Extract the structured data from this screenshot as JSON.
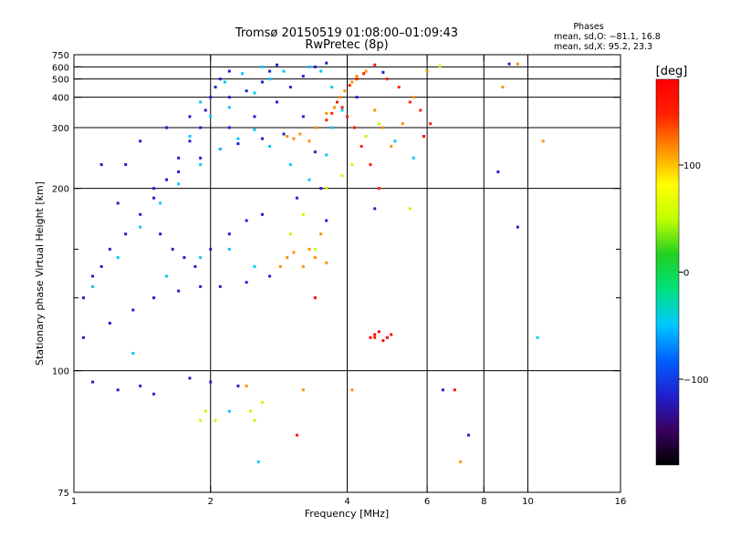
{
  "chart_data": {
    "type": "scatter",
    "title": "Tromsø 20150519 01:08:00–01:09:43",
    "subtitle": "RwPretec (8p)",
    "stats": {
      "heading": "Phases",
      "line1": "mean, sd,O: −81.1, 16.8",
      "line2": "mean, sd,X:  95.2, 23.3"
    },
    "xlabel": "Frequency [MHz]",
    "ylabel": "Stationary phase Virtual Height [km]",
    "x_scale": "log",
    "y_scale": "reciprocal",
    "xlim": [
      1,
      16
    ],
    "ylim": [
      75,
      750
    ],
    "x_ticks": [
      1,
      2,
      4,
      6,
      8,
      10,
      16
    ],
    "y_ticks": [
      75,
      100,
      200,
      300,
      400,
      500,
      600,
      750
    ],
    "x_gridlines": [
      2,
      4,
      6,
      8,
      10
    ],
    "y_gridlines": [
      100,
      200,
      300,
      400,
      500,
      600
    ],
    "y_minor_ticks": [
      125,
      150
    ],
    "colorbar": {
      "label": "[deg]",
      "range": [
        -180,
        180
      ],
      "ticks": [
        100,
        0,
        -100
      ],
      "colors": [
        "#000000",
        "#3a0060",
        "#2020d0",
        "#0060ff",
        "#00c8ff",
        "#00e080",
        "#20d020",
        "#c0ff00",
        "#ffff00",
        "#ff9000",
        "#ff2000",
        "#ff0000"
      ]
    },
    "series": [
      {
        "phase_deg": -105,
        "points": [
          [
            1.05,
            125
          ],
          [
            1.1,
            135
          ],
          [
            1.15,
            140
          ],
          [
            1.2,
            150
          ],
          [
            1.3,
            160
          ],
          [
            1.4,
            175
          ],
          [
            1.5,
            190
          ],
          [
            1.6,
            210
          ],
          [
            1.7,
            240
          ],
          [
            1.8,
            270
          ],
          [
            1.9,
            300
          ],
          [
            1.95,
            350
          ],
          [
            2.0,
            400
          ],
          [
            2.05,
            450
          ],
          [
            2.1,
            500
          ],
          [
            2.2,
            560
          ],
          [
            1.05,
            110
          ],
          [
            1.2,
            115
          ],
          [
            1.35,
            120
          ],
          [
            1.5,
            125
          ],
          [
            1.7,
            128
          ],
          [
            1.9,
            130
          ],
          [
            2.1,
            130
          ],
          [
            2.4,
            132
          ],
          [
            2.7,
            135
          ],
          [
            1.25,
            185
          ],
          [
            1.5,
            200
          ],
          [
            1.7,
            220
          ],
          [
            1.9,
            240
          ],
          [
            2.1,
            255
          ],
          [
            2.3,
            265
          ],
          [
            2.6,
            275
          ],
          [
            2.9,
            285
          ],
          [
            2.2,
            300
          ],
          [
            2.5,
            330
          ],
          [
            2.8,
            380
          ],
          [
            3.0,
            450
          ],
          [
            3.2,
            520
          ],
          [
            3.4,
            600
          ],
          [
            3.6,
            640
          ],
          [
            1.3,
            230
          ],
          [
            1.15,
            230
          ],
          [
            1.4,
            270
          ],
          [
            1.6,
            300
          ],
          [
            1.8,
            330
          ],
          [
            2.2,
            400
          ],
          [
            2.4,
            430
          ],
          [
            2.6,
            480
          ],
          [
            2.7,
            560
          ],
          [
            2.8,
            620
          ],
          [
            1.55,
            160
          ],
          [
            1.65,
            150
          ],
          [
            1.75,
            145
          ],
          [
            1.85,
            140
          ],
          [
            2.0,
            150
          ],
          [
            2.2,
            160
          ],
          [
            2.4,
            170
          ],
          [
            2.6,
            175
          ],
          [
            3.2,
            330
          ],
          [
            3.4,
            250
          ],
          [
            3.5,
            200
          ],
          [
            3.6,
            170
          ],
          [
            3.1,
            190
          ],
          [
            4.2,
            400
          ],
          [
            4.6,
            180
          ],
          [
            4.8,
            550
          ],
          [
            1.1,
            97
          ],
          [
            1.25,
            95
          ],
          [
            1.4,
            96
          ],
          [
            1.5,
            94
          ],
          [
            1.8,
            98
          ],
          [
            2.0,
            97
          ],
          [
            2.3,
            96
          ],
          [
            8.6,
            220
          ],
          [
            9.5,
            165
          ],
          [
            6.5,
            95
          ],
          [
            9.1,
            630
          ],
          [
            7.4,
            85
          ]
        ]
      },
      {
        "phase_deg": -60,
        "points": [
          [
            1.1,
            130
          ],
          [
            1.25,
            145
          ],
          [
            1.4,
            165
          ],
          [
            1.55,
            185
          ],
          [
            1.7,
            205
          ],
          [
            1.9,
            230
          ],
          [
            2.1,
            255
          ],
          [
            2.3,
            275
          ],
          [
            2.5,
            295
          ],
          [
            2.7,
            260
          ],
          [
            2.0,
            330
          ],
          [
            2.2,
            360
          ],
          [
            2.5,
            420
          ],
          [
            2.7,
            500
          ],
          [
            2.9,
            560
          ],
          [
            3.3,
            600
          ],
          [
            3.5,
            560
          ],
          [
            3.7,
            450
          ],
          [
            1.8,
            280
          ],
          [
            1.9,
            380
          ],
          [
            2.15,
            480
          ],
          [
            2.35,
            540
          ],
          [
            2.6,
            600
          ],
          [
            3.0,
            230
          ],
          [
            3.3,
            210
          ],
          [
            3.6,
            245
          ],
          [
            3.7,
            300
          ],
          [
            3.9,
            350
          ],
          [
            5.1,
            270
          ],
          [
            5.6,
            240
          ],
          [
            1.6,
            135
          ],
          [
            1.9,
            145
          ],
          [
            2.2,
            150
          ],
          [
            2.5,
            140
          ],
          [
            1.35,
            105
          ],
          [
            2.55,
            80
          ],
          [
            2.2,
            90
          ],
          [
            10.5,
            110
          ]
        ]
      },
      {
        "phase_deg": 40,
        "points": [
          [
            1.9,
            88
          ],
          [
            1.95,
            90
          ],
          [
            2.05,
            88
          ],
          [
            2.45,
            90
          ],
          [
            2.5,
            88
          ],
          [
            2.6,
            92
          ],
          [
            3.0,
            160
          ],
          [
            3.2,
            175
          ],
          [
            3.4,
            150
          ],
          [
            3.6,
            200
          ],
          [
            3.9,
            215
          ],
          [
            4.1,
            230
          ],
          [
            4.4,
            280
          ],
          [
            4.7,
            310
          ],
          [
            5.5,
            180
          ],
          [
            6.4,
            610
          ]
        ]
      },
      {
        "phase_deg": 105,
        "points": [
          [
            2.85,
            140
          ],
          [
            2.95,
            145
          ],
          [
            3.05,
            148
          ],
          [
            3.2,
            140
          ],
          [
            3.3,
            150
          ],
          [
            3.4,
            145
          ],
          [
            3.5,
            160
          ],
          [
            3.6,
            142
          ],
          [
            2.95,
            280
          ],
          [
            3.05,
            275
          ],
          [
            3.15,
            285
          ],
          [
            3.3,
            270
          ],
          [
            3.4,
            300
          ],
          [
            3.6,
            340
          ],
          [
            3.75,
            360
          ],
          [
            3.85,
            400
          ],
          [
            3.95,
            430
          ],
          [
            4.1,
            480
          ],
          [
            4.2,
            520
          ],
          [
            4.4,
            560
          ],
          [
            4.6,
            350
          ],
          [
            4.8,
            300
          ],
          [
            5.0,
            260
          ],
          [
            5.3,
            310
          ],
          [
            5.6,
            400
          ],
          [
            6.0,
            560
          ],
          [
            9.5,
            630
          ],
          [
            3.2,
            95
          ],
          [
            4.1,
            95
          ],
          [
            2.4,
            96
          ],
          [
            10.8,
            270
          ],
          [
            8.8,
            450
          ],
          [
            7.1,
            80
          ]
        ]
      },
      {
        "phase_deg": 150,
        "points": [
          [
            3.6,
            320
          ],
          [
            3.7,
            340
          ],
          [
            3.8,
            380
          ],
          [
            3.9,
            360
          ],
          [
            4.0,
            330
          ],
          [
            4.15,
            300
          ],
          [
            4.3,
            260
          ],
          [
            4.5,
            230
          ],
          [
            4.7,
            200
          ],
          [
            4.05,
            460
          ],
          [
            4.2,
            500
          ],
          [
            4.35,
            540
          ],
          [
            4.6,
            620
          ],
          [
            4.9,
            500
          ],
          [
            5.2,
            450
          ],
          [
            5.5,
            380
          ],
          [
            5.8,
            350
          ],
          [
            6.1,
            310
          ],
          [
            3.1,
            85
          ],
          [
            4.6,
            110
          ]
        ]
      },
      {
        "phase_deg": 165,
        "points": [
          [
            4.5,
            110
          ],
          [
            4.6,
            111
          ],
          [
            4.7,
            112
          ],
          [
            4.8,
            109
          ],
          [
            4.9,
            110
          ],
          [
            5.0,
            111
          ],
          [
            3.4,
            125
          ],
          [
            6.9,
            95
          ],
          [
            5.9,
            280
          ]
        ]
      }
    ]
  }
}
